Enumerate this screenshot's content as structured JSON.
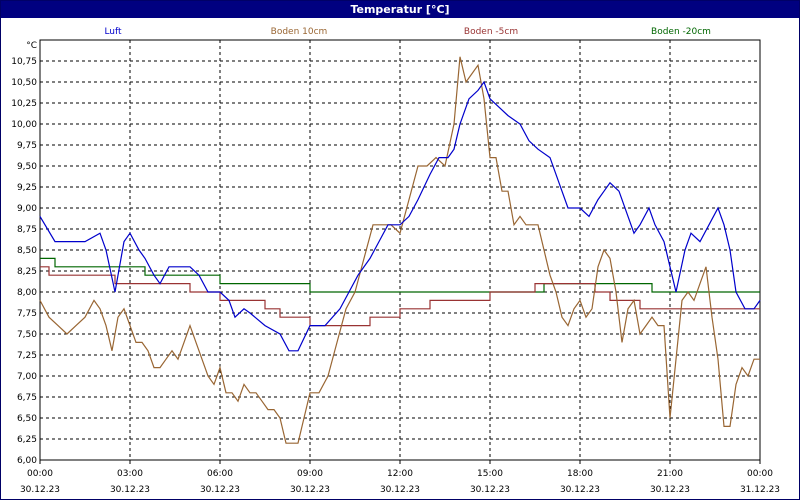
{
  "window": {
    "title": "Temperatur [°C]"
  },
  "chart_data": {
    "type": "line",
    "title": "Temperatur [°C]",
    "unit_label": "°C",
    "xlabel": "",
    "ylabel": "",
    "ylim": [
      6.0,
      11.0
    ],
    "xlim_hours": [
      0,
      24
    ],
    "y_ticks": [
      "6,00",
      "6,25",
      "6,50",
      "6,75",
      "7,00",
      "7,25",
      "7,50",
      "7,75",
      "8,00",
      "8,25",
      "8,50",
      "8,75",
      "9,00",
      "9,25",
      "9,50",
      "9,75",
      "10,00",
      "10,25",
      "10,50",
      "10,75"
    ],
    "y_tick_values": [
      6.0,
      6.25,
      6.5,
      6.75,
      7.0,
      7.25,
      7.5,
      7.75,
      8.0,
      8.25,
      8.5,
      8.75,
      9.0,
      9.25,
      9.5,
      9.75,
      10.0,
      10.25,
      10.5,
      10.75
    ],
    "x_ticks": [
      {
        "h": 0,
        "time": "00:00",
        "date": "30.12.23"
      },
      {
        "h": 3,
        "time": "03:00",
        "date": "30.12.23"
      },
      {
        "h": 6,
        "time": "06:00",
        "date": "30.12.23"
      },
      {
        "h": 9,
        "time": "09:00",
        "date": "30.12.23"
      },
      {
        "h": 12,
        "time": "12:00",
        "date": "30.12.23"
      },
      {
        "h": 15,
        "time": "15:00",
        "date": "30.12.23"
      },
      {
        "h": 18,
        "time": "18:00",
        "date": "30.12.23"
      },
      {
        "h": 21,
        "time": "21:00",
        "date": "30.12.23"
      },
      {
        "h": 24,
        "time": "00:00",
        "date": "31.12.23"
      }
    ],
    "grid": true,
    "legend_position": "top",
    "series": [
      {
        "name": "Luft",
        "color": "#0000cc",
        "x": [
          0,
          0.5,
          1,
          1.5,
          2,
          2.2,
          2.5,
          2.8,
          3,
          3.3,
          3.5,
          3.8,
          4,
          4.3,
          4.6,
          5,
          5.3,
          5.6,
          6,
          6.3,
          6.5,
          6.8,
          7,
          7.5,
          8,
          8.3,
          8.6,
          9,
          9.5,
          10,
          10.3,
          10.6,
          11,
          11.3,
          11.6,
          12,
          12.3,
          12.6,
          13,
          13.3,
          13.6,
          13.8,
          14,
          14.3,
          14.6,
          14.8,
          15,
          15.3,
          15.6,
          16,
          16.3,
          16.6,
          17,
          17.3,
          17.6,
          18,
          18.3,
          18.6,
          18.8,
          19,
          19.3,
          19.6,
          19.8,
          20,
          20.3,
          20.5,
          20.8,
          21,
          21.2,
          21.5,
          21.7,
          22,
          22.3,
          22.6,
          22.8,
          23,
          23.2,
          23.5,
          23.8,
          24
        ],
        "y": [
          8.9,
          8.6,
          8.6,
          8.6,
          8.7,
          8.5,
          8.0,
          8.6,
          8.7,
          8.5,
          8.4,
          8.2,
          8.1,
          8.3,
          8.3,
          8.3,
          8.2,
          8.0,
          8.0,
          7.9,
          7.7,
          7.8,
          7.75,
          7.6,
          7.5,
          7.3,
          7.3,
          7.6,
          7.6,
          7.8,
          8.0,
          8.2,
          8.4,
          8.6,
          8.8,
          8.8,
          8.9,
          9.1,
          9.4,
          9.6,
          9.6,
          9.7,
          10.0,
          10.3,
          10.4,
          10.5,
          10.3,
          10.2,
          10.1,
          10.0,
          9.8,
          9.7,
          9.6,
          9.3,
          9.0,
          9.0,
          8.9,
          9.1,
          9.2,
          9.3,
          9.2,
          8.9,
          8.7,
          8.8,
          9.0,
          8.8,
          8.6,
          8.3,
          8.0,
          8.5,
          8.7,
          8.6,
          8.8,
          9.0,
          8.8,
          8.5,
          8.0,
          7.8,
          7.8,
          7.9
        ]
      },
      {
        "name": "Boden 10cm",
        "color": "#996633",
        "x": [
          0,
          0.3,
          0.6,
          0.9,
          1.2,
          1.5,
          1.8,
          2.0,
          2.2,
          2.4,
          2.6,
          2.8,
          3,
          3.2,
          3.4,
          3.6,
          3.8,
          4,
          4.2,
          4.4,
          4.6,
          4.8,
          5,
          5.2,
          5.4,
          5.6,
          5.8,
          6,
          6.2,
          6.4,
          6.6,
          6.8,
          7,
          7.2,
          7.4,
          7.6,
          7.8,
          8,
          8.2,
          8.4,
          8.6,
          8.8,
          9,
          9.3,
          9.6,
          9.9,
          10.2,
          10.5,
          10.8,
          11.1,
          11.4,
          11.7,
          12,
          12.3,
          12.6,
          12.9,
          13.2,
          13.5,
          13.8,
          14.0,
          14.2,
          14.4,
          14.6,
          14.8,
          15.0,
          15.2,
          15.4,
          15.6,
          15.8,
          16.0,
          16.2,
          16.4,
          16.6,
          16.8,
          17.0,
          17.2,
          17.4,
          17.6,
          17.8,
          18.0,
          18.2,
          18.4,
          18.6,
          18.8,
          19.0,
          19.2,
          19.4,
          19.6,
          19.8,
          20.0,
          20.2,
          20.4,
          20.6,
          20.8,
          21.0,
          21.2,
          21.4,
          21.6,
          21.8,
          22.0,
          22.2,
          22.4,
          22.6,
          22.8,
          23.0,
          23.2,
          23.4,
          23.6,
          23.8,
          24.0
        ],
        "y": [
          7.9,
          7.7,
          7.6,
          7.5,
          7.6,
          7.7,
          7.9,
          7.8,
          7.6,
          7.3,
          7.7,
          7.8,
          7.6,
          7.4,
          7.4,
          7.3,
          7.1,
          7.1,
          7.2,
          7.3,
          7.2,
          7.4,
          7.6,
          7.4,
          7.2,
          7.0,
          6.9,
          7.1,
          6.8,
          6.8,
          6.7,
          6.9,
          6.8,
          6.8,
          6.7,
          6.6,
          6.6,
          6.5,
          6.2,
          6.2,
          6.2,
          6.5,
          6.8,
          6.8,
          7.0,
          7.4,
          7.8,
          8.0,
          8.4,
          8.8,
          8.8,
          8.8,
          8.7,
          9.1,
          9.5,
          9.5,
          9.6,
          9.5,
          10.0,
          10.8,
          10.5,
          10.6,
          10.7,
          10.3,
          9.6,
          9.6,
          9.2,
          9.2,
          8.8,
          8.9,
          8.8,
          8.8,
          8.8,
          8.5,
          8.2,
          8.0,
          7.7,
          7.6,
          7.8,
          7.9,
          7.7,
          7.8,
          8.3,
          8.5,
          8.4,
          8.0,
          7.4,
          7.8,
          7.9,
          7.5,
          7.6,
          7.7,
          7.6,
          7.6,
          6.5,
          7.2,
          7.9,
          8.0,
          7.9,
          8.1,
          8.3,
          7.7,
          7.2,
          6.4,
          6.4,
          6.9,
          7.1,
          7.0,
          7.2,
          7.2
        ]
      },
      {
        "name": "Boden -5cm",
        "color": "#993333",
        "x": [
          0,
          0.3,
          0.3,
          2.5,
          2.5,
          3.0,
          3.0,
          5.0,
          5.0,
          6.0,
          6.0,
          7.5,
          7.5,
          8.0,
          8.0,
          9.0,
          9.0,
          11.0,
          11.0,
          12.0,
          12.0,
          13.0,
          13.0,
          15.0,
          15.0,
          16.5,
          16.5,
          18.5,
          18.5,
          19.0,
          19.0,
          20.0,
          20.0,
          21.0,
          21.0,
          22.5,
          22.5,
          24.0
        ],
        "y": [
          8.3,
          8.3,
          8.2,
          8.2,
          8.1,
          8.1,
          8.1,
          8.1,
          8.0,
          8.0,
          7.9,
          7.9,
          7.8,
          7.8,
          7.7,
          7.7,
          7.6,
          7.6,
          7.7,
          7.7,
          7.8,
          7.8,
          7.9,
          7.9,
          8.0,
          8.0,
          8.1,
          8.1,
          8.0,
          8.0,
          7.9,
          7.9,
          7.8,
          7.8,
          7.8,
          7.8,
          7.8,
          7.8
        ]
      },
      {
        "name": "Boden -20cm",
        "color": "#006600",
        "x": [
          0,
          0.5,
          0.5,
          3.5,
          3.5,
          6.0,
          6.0,
          9.0,
          9.0,
          16.8,
          16.8,
          20.4,
          20.4,
          24.0
        ],
        "y": [
          8.4,
          8.4,
          8.3,
          8.3,
          8.2,
          8.2,
          8.1,
          8.1,
          8.0,
          8.0,
          8.1,
          8.1,
          8.0,
          8.0
        ]
      }
    ]
  }
}
